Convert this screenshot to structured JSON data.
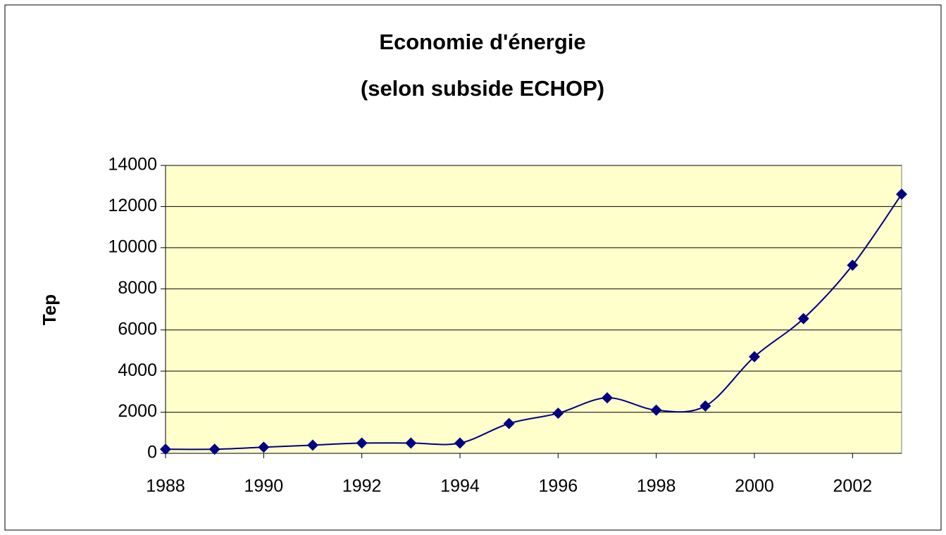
{
  "chart_data": {
    "type": "line",
    "title": "Economie d'énergie",
    "subtitle": "(selon subside ECHOP)",
    "y_label": "Tep",
    "x": [
      1988,
      1989,
      1990,
      1991,
      1992,
      1993,
      1994,
      1995,
      1996,
      1997,
      1998,
      1999,
      2000,
      2001,
      2002,
      2003
    ],
    "series": [
      {
        "color": "#000080",
        "values": [
          200,
          200,
          300,
          400,
          500,
          500,
          500,
          1450,
          1950,
          2700,
          2100,
          2300,
          4700,
          6550,
          9150,
          12600
        ]
      }
    ],
    "xlim": [
      1988,
      2003
    ],
    "xticks": [
      1988,
      1990,
      1992,
      1994,
      1996,
      1998,
      2000,
      2002
    ],
    "ylim": [
      0,
      14000
    ],
    "yticks": [
      0,
      2000,
      4000,
      6000,
      8000,
      10000,
      12000,
      14000
    ],
    "grid": true,
    "smooth": true,
    "plot_background": "#ffffcc"
  }
}
